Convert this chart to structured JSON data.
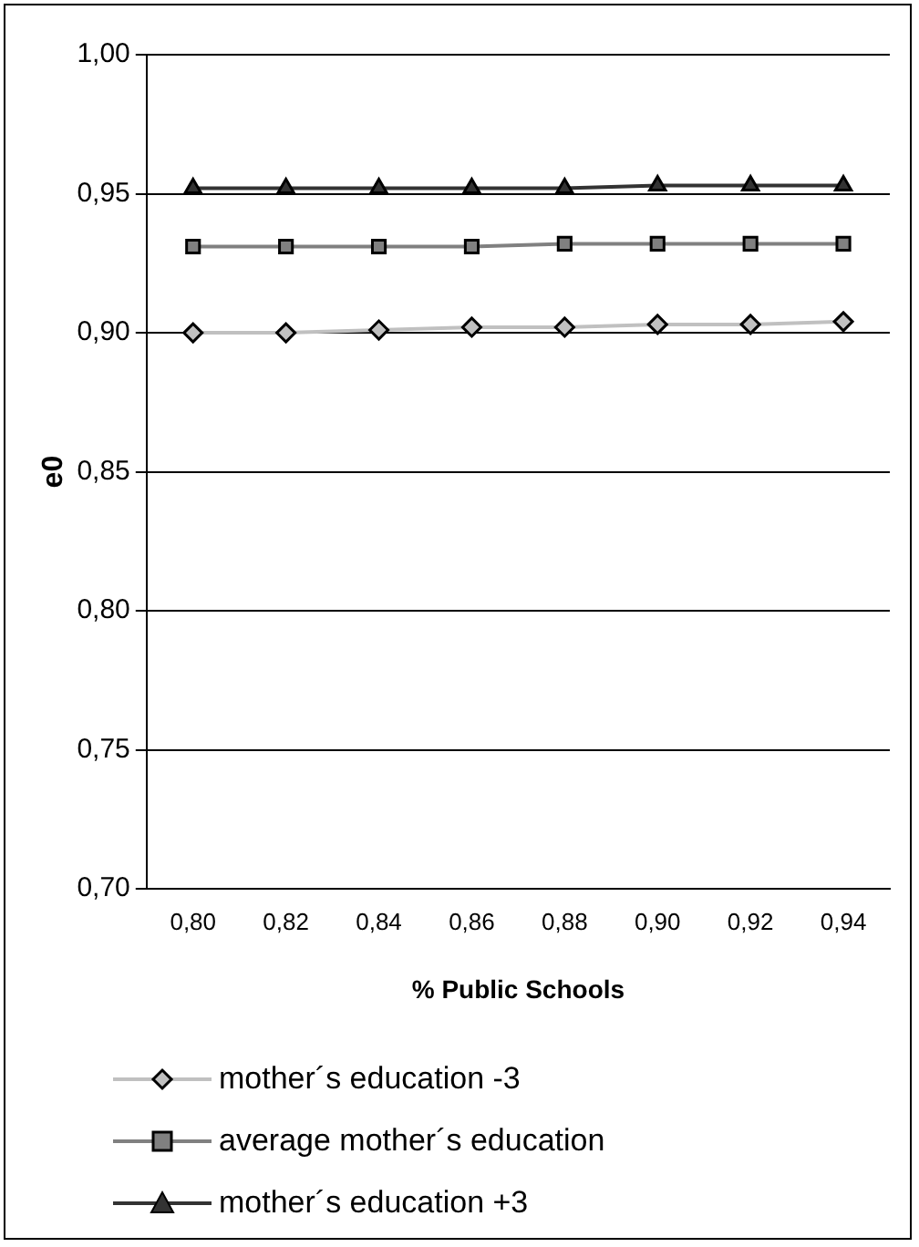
{
  "chart_data": {
    "type": "line",
    "xlabel": "% Public Schools",
    "ylabel": "e0",
    "categories": [
      "0,80",
      "0,82",
      "0,84",
      "0,86",
      "0,88",
      "0,90",
      "0,92",
      "0,94"
    ],
    "series": [
      {
        "name": "mother´s education -3",
        "color": "#c0c0c0",
        "marker": "diamond",
        "values": [
          0.9,
          0.9,
          0.901,
          0.902,
          0.902,
          0.903,
          0.903,
          0.904
        ]
      },
      {
        "name": "average mother´s education",
        "color": "#808080",
        "marker": "square",
        "values": [
          0.931,
          0.931,
          0.931,
          0.931,
          0.932,
          0.932,
          0.932,
          0.932
        ]
      },
      {
        "name": "mother´s education +3",
        "color": "#333333",
        "marker": "triangle",
        "values": [
          0.952,
          0.952,
          0.952,
          0.952,
          0.952,
          0.953,
          0.953,
          0.953
        ]
      }
    ],
    "ylim": [
      0.7,
      1.0
    ],
    "yticks": [
      {
        "value": 0.7,
        "label": "0,70"
      },
      {
        "value": 0.75,
        "label": "0,75"
      },
      {
        "value": 0.8,
        "label": "0,80"
      },
      {
        "value": 0.85,
        "label": "0,85"
      },
      {
        "value": 0.9,
        "label": "0,90"
      },
      {
        "value": 0.95,
        "label": "0,95"
      },
      {
        "value": 1.0,
        "label": "1,00"
      }
    ],
    "grid": "y",
    "legend": "bottom"
  }
}
